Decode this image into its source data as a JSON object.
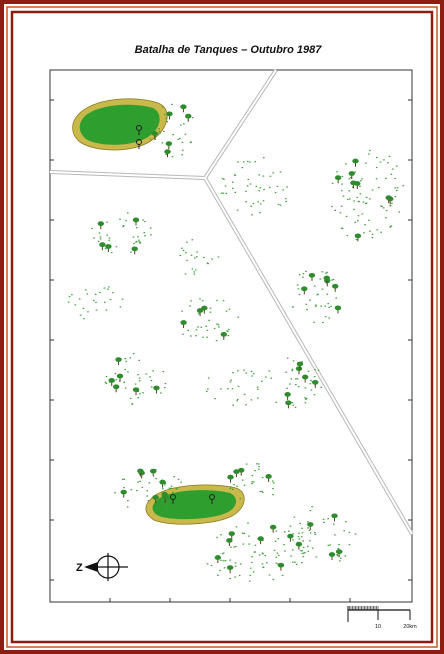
{
  "map": {
    "title": "Batalha de Tanques – Outubro 1987",
    "compass_letter": "Z",
    "scale": {
      "labels": [
        "10",
        "20km"
      ]
    },
    "colors": {
      "frame_outer": "#8b1e10",
      "frame_inner": "#c9561c",
      "background": "#ffffff",
      "lake_fill": "#2e9e2e",
      "lake_border": "#c9b84a",
      "bush_dot": "#2e8b2e",
      "road": "#b8b8b8"
    }
  }
}
